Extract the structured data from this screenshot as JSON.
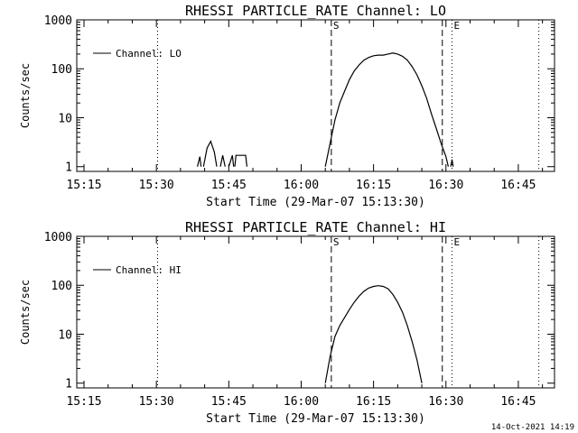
{
  "page": {
    "footer_timestamp": "14-Oct-2021 14:19",
    "colors": {
      "background": "#ffffff",
      "ink": "#000000"
    }
  },
  "chart_data": [
    {
      "type": "line",
      "title": "RHESSI PARTICLE_RATE Channel: LO",
      "xlabel": "Start Time (29-Mar-07 15:13:30)",
      "ylabel": "Counts/sec",
      "yscale": "log",
      "xlim": [
        "15:13:30",
        "16:52:30"
      ],
      "ylim": [
        0.8,
        1000
      ],
      "x_tick_labels": [
        "15:15",
        "15:30",
        "15:45",
        "16:00",
        "16:15",
        "16:30",
        "16:45"
      ],
      "y_tick_labels": [
        "1",
        "10",
        "100",
        "1000"
      ],
      "legend": {
        "label": "Channel: LO",
        "position": "top-left"
      },
      "markers": [
        {
          "time": "15:30:15",
          "style": "dotted",
          "label": ""
        },
        {
          "time": "16:06:15",
          "style": "dashed",
          "label": "S"
        },
        {
          "time": "16:29:15",
          "style": "dashed",
          "label": ""
        },
        {
          "time": "16:31:15",
          "style": "dotted",
          "label": "E"
        },
        {
          "time": "16:49:15",
          "style": "dotted",
          "label": ""
        }
      ],
      "series": [
        {
          "name": "Channel: LO",
          "segments": [
            [
              [
                "15:38:30",
                1.0
              ],
              [
                "15:39:00",
                1.6
              ],
              [
                "15:39:15",
                1.0
              ]
            ],
            [
              [
                "15:39:45",
                1.0
              ],
              [
                "15:40:30",
                2.4
              ],
              [
                "15:41:15",
                3.3
              ],
              [
                "15:42:00",
                2.0
              ],
              [
                "15:42:30",
                1.0
              ]
            ],
            [
              [
                "15:43:15",
                1.0
              ],
              [
                "15:43:45",
                1.7
              ],
              [
                "15:44:15",
                1.0
              ]
            ],
            [
              [
                "15:45:00",
                1.0
              ],
              [
                "15:45:45",
                1.7
              ],
              [
                "15:46:00",
                1.0
              ]
            ],
            [
              [
                "15:46:15",
                1.0
              ],
              [
                "15:46:30",
                1.7
              ],
              [
                "15:48:30",
                1.7
              ],
              [
                "15:48:45",
                1.0
              ]
            ],
            [
              [
                "16:05:00",
                1.0
              ],
              [
                "16:06:00",
                3.0
              ],
              [
                "16:07:00",
                9.0
              ],
              [
                "16:08:00",
                20
              ],
              [
                "16:09:00",
                35
              ],
              [
                "16:10:00",
                60
              ],
              [
                "16:11:00",
                90
              ],
              [
                "16:12:00",
                120
              ],
              [
                "16:13:00",
                150
              ],
              [
                "16:14:00",
                170
              ],
              [
                "16:15:00",
                185
              ],
              [
                "16:16:00",
                190
              ],
              [
                "16:17:00",
                190
              ],
              [
                "16:18:00",
                200
              ],
              [
                "16:19:00",
                210
              ],
              [
                "16:20:00",
                200
              ],
              [
                "16:21:00",
                180
              ],
              [
                "16:22:00",
                150
              ],
              [
                "16:23:00",
                110
              ],
              [
                "16:24:00",
                75
              ],
              [
                "16:25:00",
                45
              ],
              [
                "16:26:00",
                25
              ],
              [
                "16:27:00",
                12
              ],
              [
                "16:28:00",
                6
              ],
              [
                "16:29:00",
                3
              ],
              [
                "16:30:00",
                1.6
              ],
              [
                "16:30:30",
                1.0
              ]
            ],
            [
              [
                "16:31:00",
                1.0
              ],
              [
                "16:31:15",
                1.4
              ],
              [
                "16:31:30",
                1.0
              ]
            ]
          ]
        }
      ]
    },
    {
      "type": "line",
      "title": "RHESSI PARTICLE_RATE Channel: HI",
      "xlabel": "Start Time (29-Mar-07 15:13:30)",
      "ylabel": "Counts/sec",
      "yscale": "log",
      "xlim": [
        "15:13:30",
        "16:52:30"
      ],
      "ylim": [
        0.8,
        1000
      ],
      "x_tick_labels": [
        "15:15",
        "15:30",
        "15:45",
        "16:00",
        "16:15",
        "16:30",
        "16:45"
      ],
      "y_tick_labels": [
        "1",
        "10",
        "100",
        "1000"
      ],
      "legend": {
        "label": "Channel: HI",
        "position": "top-left"
      },
      "markers": [
        {
          "time": "15:30:15",
          "style": "dotted",
          "label": ""
        },
        {
          "time": "16:06:15",
          "style": "dashed",
          "label": "S"
        },
        {
          "time": "16:29:15",
          "style": "dashed",
          "label": ""
        },
        {
          "time": "16:31:15",
          "style": "dotted",
          "label": "E"
        },
        {
          "time": "16:49:15",
          "style": "dotted",
          "label": ""
        }
      ],
      "series": [
        {
          "name": "Channel: HI",
          "segments": [
            [
              [
                "16:05:00",
                1.0
              ],
              [
                "16:06:00",
                3.5
              ],
              [
                "16:07:00",
                9.0
              ],
              [
                "16:08:00",
                15
              ],
              [
                "16:09:00",
                22
              ],
              [
                "16:10:00",
                32
              ],
              [
                "16:11:00",
                45
              ],
              [
                "16:12:00",
                60
              ],
              [
                "16:13:00",
                75
              ],
              [
                "16:14:00",
                88
              ],
              [
                "16:15:00",
                95
              ],
              [
                "16:16:00",
                98
              ],
              [
                "16:17:00",
                95
              ],
              [
                "16:18:00",
                85
              ],
              [
                "16:19:00",
                65
              ],
              [
                "16:20:00",
                45
              ],
              [
                "16:21:00",
                28
              ],
              [
                "16:22:00",
                15
              ],
              [
                "16:23:00",
                7
              ],
              [
                "16:24:00",
                3
              ],
              [
                "16:25:00",
                1.0
              ]
            ]
          ]
        }
      ]
    }
  ]
}
